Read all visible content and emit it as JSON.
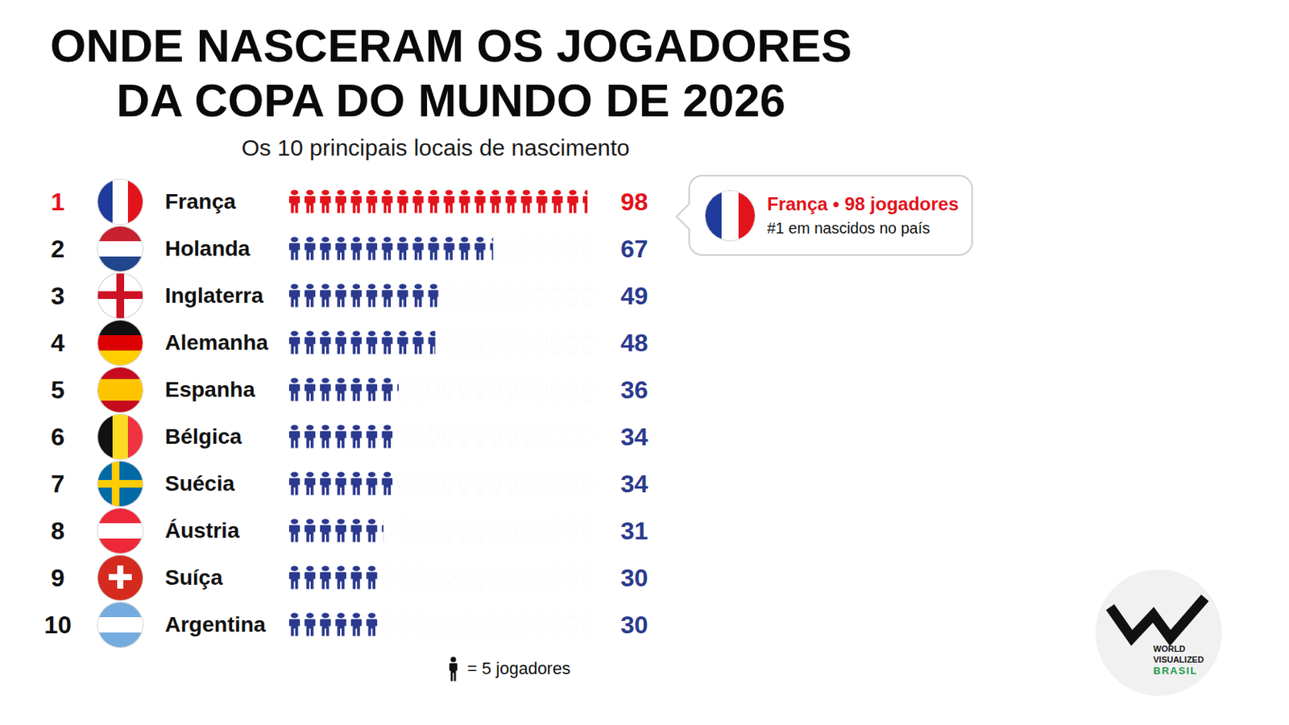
{
  "chart_data": {
    "type": "pictorial_bar",
    "orientation": "horizontal",
    "title": "ONDE NASCERAM OS JOGADORES\nDA COPA DO MUNDO DE 2026",
    "subtitle": "Os 10 principais locais de nascimento",
    "ranks": [
      1,
      2,
      3,
      4,
      5,
      6,
      7,
      8,
      9,
      10
    ],
    "categories": [
      "França",
      "Holanda",
      "Inglaterra",
      "Alemanha",
      "Espanha",
      "Bélgica",
      "Suécia",
      "Áustria",
      "Suíça",
      "Argentina"
    ],
    "values": [
      98,
      67,
      49,
      48,
      36,
      34,
      34,
      31,
      30,
      30
    ],
    "colors": [
      "#e3131b",
      "#2b3a8e",
      "#2b3a8e",
      "#2b3a8e",
      "#2b3a8e",
      "#2b3a8e",
      "#2b3a8e",
      "#2b3a8e",
      "#2b3a8e",
      "#2b3a8e"
    ],
    "xlim": [
      0,
      100
    ],
    "tick_labels": false,
    "grid": false,
    "data_labels": true,
    "per_icon": 5,
    "legend_label": "= 5 jogadores",
    "annotation": {
      "title": "França • 98 jogadores",
      "text": "#1 em nascidos no país"
    },
    "logo": [
      "WORLD",
      "VISUALIZED",
      "BRASIL"
    ]
  }
}
